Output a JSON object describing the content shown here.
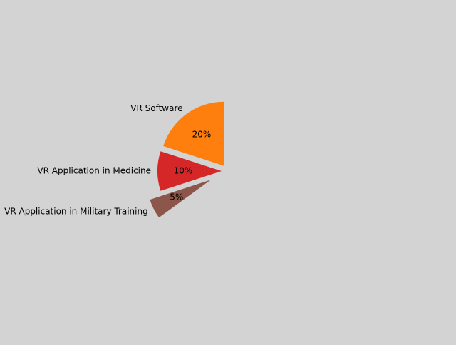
{
  "chart_data": {
    "type": "pie",
    "start_angle_deg": 90,
    "direction": "counterclockwise",
    "slices": [
      {
        "label": "VR Software",
        "value": 20,
        "pct_label": "20%",
        "color": "#ff7f0e",
        "explode": 0.1
      },
      {
        "label": "VR Application in Medicine",
        "value": 10,
        "pct_label": "10%",
        "color": "#d62728",
        "explode": 0.1
      },
      {
        "label": "VR Application in Military Training",
        "value": 5,
        "pct_label": "5%",
        "color": "#8c564b",
        "explode": 0.3
      }
    ],
    "legend": "none",
    "background": "#d3d3d3"
  }
}
